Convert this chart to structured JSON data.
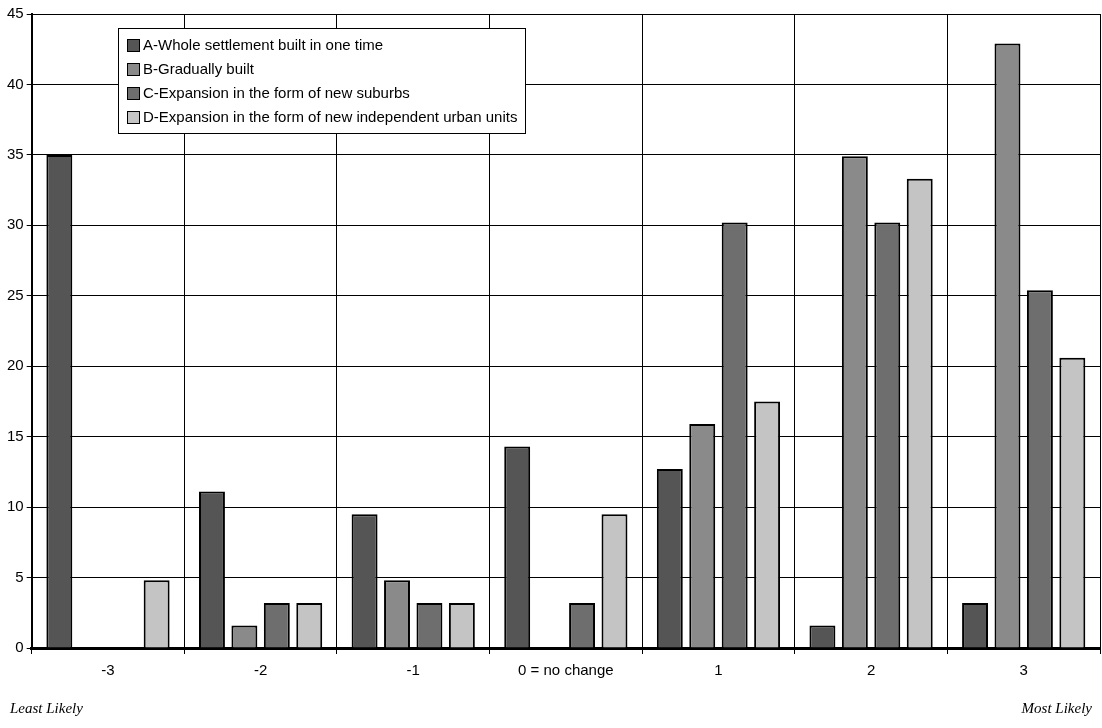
{
  "chart_data": {
    "type": "bar",
    "categories": [
      "-3",
      "-2",
      "-1",
      "0 = no change",
      "1",
      "2",
      "3"
    ],
    "series": [
      {
        "name": "A-Whole settlement built in one time",
        "color": "#555555",
        "values": [
          35,
          11.1,
          9.5,
          14.3,
          12.7,
          1.6,
          3.2
        ]
      },
      {
        "name": "B-Gradually built",
        "color": "#8a8a8a",
        "values": [
          0,
          1.6,
          4.8,
          0,
          15.9,
          34.9,
          42.9
        ]
      },
      {
        "name": "C-Expansion in the form of new suburbs",
        "color": "#6e6e6e",
        "values": [
          0,
          3.2,
          3.2,
          3.2,
          30.2,
          30.2,
          25.4
        ]
      },
      {
        "name": "D-Expansion in the form of new independent urban units",
        "color": "#c4c4c4",
        "values": [
          4.8,
          3.2,
          3.2,
          9.5,
          17.5,
          33.3,
          20.6
        ]
      }
    ],
    "ylim": [
      0,
      45
    ],
    "yticks": [
      0,
      5,
      10,
      15,
      20,
      25,
      30,
      35,
      40,
      45
    ],
    "grid": true,
    "legend": "top left",
    "annotations": [
      "Least Likely",
      "Most Likely"
    ]
  }
}
